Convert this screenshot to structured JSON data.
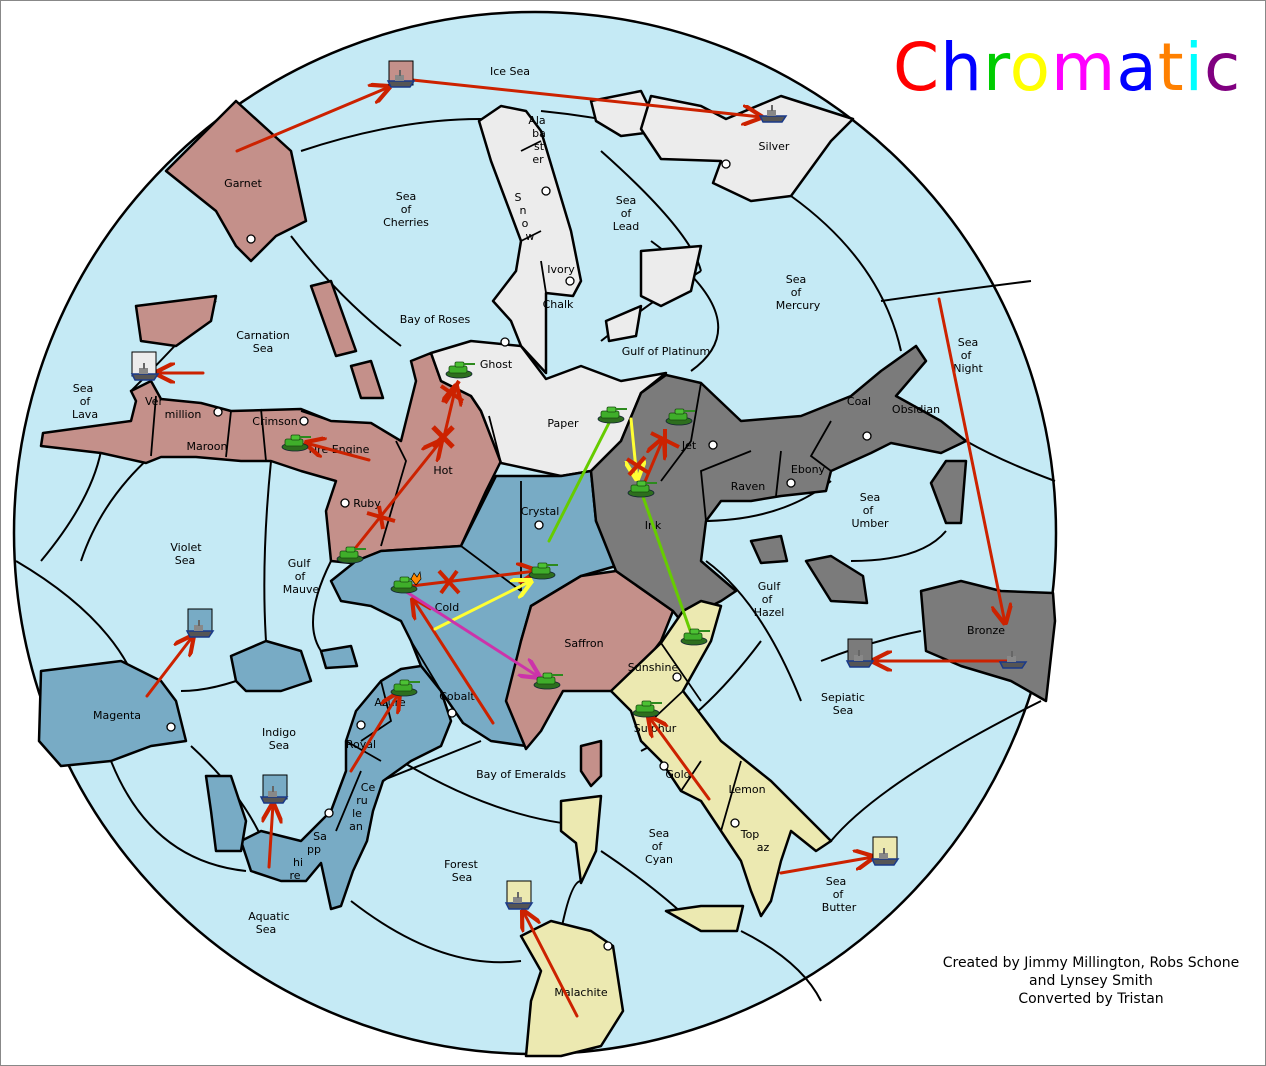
{
  "title": {
    "letters": [
      {
        "ch": "C",
        "color": "#ff0000"
      },
      {
        "ch": "h",
        "color": "#0000ff"
      },
      {
        "ch": "r",
        "color": "#00cc00"
      },
      {
        "ch": "o",
        "color": "#ffff00"
      },
      {
        "ch": "m",
        "color": "#ff00ff"
      },
      {
        "ch": "a",
        "color": "#0000ff"
      },
      {
        "ch": "t",
        "color": "#ff8000"
      },
      {
        "ch": "i",
        "color": "#00ffff"
      },
      {
        "ch": "c",
        "color": "#800080"
      }
    ]
  },
  "credits": [
    "Created by Jimmy Millington, Robs Schone",
    "and Lynsey Smith",
    "Converted by Tristan"
  ],
  "colors": {
    "sea": "#c5eaf5",
    "red_power": "#c4908a",
    "blue_power": "#78abc5",
    "gray_power": "#7b7b7b",
    "white_power": "#ececec",
    "yellow_power": "#ece9b1",
    "order_move": "#cc2200",
    "order_support": "#ffff33",
    "order_convoy": "#66cc00",
    "order_retreat": "#cc33aa"
  },
  "labels": {
    "ice_sea": "Ice Sea",
    "alabaster": [
      "Ala",
      "ba",
      "st",
      "er"
    ],
    "snow": [
      "S",
      "n",
      "o",
      "w"
    ],
    "silver": "Silver",
    "sea_of_cherries": [
      "Sea",
      "of",
      "Cherries"
    ],
    "sea_of_lead": [
      "Sea",
      "of",
      "Lead"
    ],
    "garnet": "Garnet",
    "ivory": "Ivory",
    "chalk": "Chalk",
    "sea_of_mercury": [
      "Sea",
      "of",
      "Mercury"
    ],
    "carnation_sea": [
      "Carnation",
      "Sea"
    ],
    "bay_of_roses": "Bay of Roses",
    "gulf_of_platinum": "Gulf of Platinum",
    "sea_of_night": [
      "Sea",
      "of",
      "Night"
    ],
    "ghost": "Ghost",
    "sea_of_lava": [
      "Sea",
      "of",
      "Lava"
    ],
    "vermillion": [
      "Ver",
      "million"
    ],
    "crimson": "Crimson",
    "paper": "Paper",
    "coal": "Coal",
    "obsidian": "Obsidian",
    "jet": "Jet",
    "maroon": "Maroon",
    "fire_engine": "Fire Engine",
    "ebony": "Ebony",
    "hot": "Hot",
    "raven": "Raven",
    "ruby": "Ruby",
    "sea_of_umber": [
      "Sea",
      "of",
      "Umber"
    ],
    "crystal": "Crystal",
    "ink": "Ink",
    "violet_sea": [
      "Violet",
      "Sea"
    ],
    "gulf_of_mauve": [
      "Gulf",
      "of",
      "Mauve"
    ],
    "gulf_of_hazel": [
      "Gulf",
      "of",
      "Hazel"
    ],
    "cold": "Cold",
    "bronze": "Bronze",
    "saffron": "Saffron",
    "sunshine": "Sunshine",
    "cobalt": "Cobalt",
    "sepiatic_sea": [
      "Sepiatic",
      "Sea"
    ],
    "azure": "Azure",
    "magenta": "Magenta",
    "sulphur": "Sulphur",
    "indigo_sea": [
      "Indigo",
      "Sea"
    ],
    "royal": "Royal",
    "bay_of_emeralds": "Bay of Emeralds",
    "gold": "Gold",
    "lemon": "Lemon",
    "cerulean": [
      "Ce",
      "ru",
      "le",
      "an"
    ],
    "topaz": [
      "Top",
      "az"
    ],
    "sea_of_cyan": [
      "Sea",
      "of",
      "Cyan"
    ],
    "sapphire": [
      "Sa",
      "pp",
      "hi",
      "re"
    ],
    "forest_sea": [
      "Forest",
      "Sea"
    ],
    "sea_of_butter": [
      "Sea",
      "of",
      "Butter"
    ],
    "aquatic_sea": [
      "Aquatic",
      "Sea"
    ],
    "malachite": "Malachite"
  },
  "units": {
    "army_icon": "tank-icon",
    "fleet_icon": "ship-icon"
  }
}
